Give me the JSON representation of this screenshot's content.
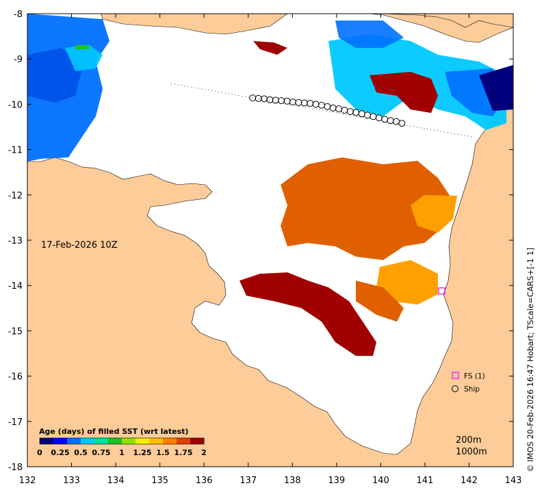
{
  "map": {
    "date_label": "17-Feb-2026 10Z",
    "credit": "© IMOS 20-Feb-2026 16:47 Hobart; TScale=CARS+[-1 1]",
    "lon_ticks": [
      "132",
      "133",
      "134",
      "135",
      "136",
      "137",
      "138",
      "139",
      "140",
      "141",
      "142",
      "143"
    ],
    "lat_ticks": [
      "-8",
      "-9",
      "-10",
      "-11",
      "-12",
      "-13",
      "-14",
      "-15",
      "-16",
      "-17",
      "-18"
    ],
    "lon_range": [
      132,
      143
    ],
    "lat_range": [
      -18,
      -8
    ],
    "colorbar": {
      "title": "Age (days) of filled SST (wrt latest)",
      "tick_labels": [
        "0",
        "0.25",
        "0.5",
        "0.75",
        "1",
        "1.25",
        "1.5",
        "1.75",
        "2"
      ],
      "colors": [
        "#00007f",
        "#0000ff",
        "#0070ff",
        "#00c8ff",
        "#00e0a0",
        "#20c020",
        "#90e000",
        "#f0f000",
        "#ffc000",
        "#ff8000",
        "#e04000",
        "#a00000"
      ]
    },
    "legend": {
      "fs_label": "FS (1)",
      "ship_label": "Ship"
    },
    "isobaths": [
      "200m",
      "1000m"
    ],
    "colors": {
      "land": "#fdcc99",
      "sea": "#ffffff",
      "fs_marker": "#ff00ff"
    },
    "ship_track": [
      [
        137.1,
        -9.86
      ],
      [
        137.23,
        -9.87
      ],
      [
        137.36,
        -9.88
      ],
      [
        137.49,
        -9.9
      ],
      [
        137.62,
        -9.91
      ],
      [
        137.75,
        -9.92
      ],
      [
        137.88,
        -9.93
      ],
      [
        138.01,
        -9.95
      ],
      [
        138.14,
        -9.96
      ],
      [
        138.27,
        -9.97
      ],
      [
        138.4,
        -9.98
      ],
      [
        138.53,
        -10.0
      ],
      [
        138.66,
        -10.02
      ],
      [
        138.79,
        -10.05
      ],
      [
        138.92,
        -10.08
      ],
      [
        139.05,
        -10.1
      ],
      [
        139.18,
        -10.13
      ],
      [
        139.31,
        -10.16
      ],
      [
        139.44,
        -10.18
      ],
      [
        139.57,
        -10.21
      ],
      [
        139.7,
        -10.24
      ],
      [
        139.83,
        -10.27
      ],
      [
        139.96,
        -10.3
      ],
      [
        140.09,
        -10.33
      ],
      [
        140.22,
        -10.36
      ],
      [
        140.35,
        -10.38
      ],
      [
        140.48,
        -10.42
      ]
    ],
    "fs_position": [
      141.38,
      -14.12
    ]
  }
}
